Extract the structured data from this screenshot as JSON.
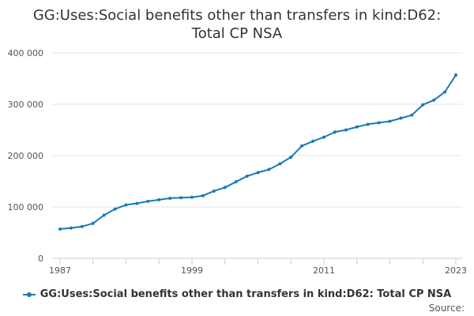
{
  "chart_data": {
    "type": "line",
    "title_lines": [
      "GG:Uses:Social benefits other than transfers in kind:D62:",
      "Total CP NSA"
    ],
    "xlabel": "",
    "ylabel": "",
    "x_tick_labels": [
      "1987",
      "1999",
      "2011",
      "2023"
    ],
    "x_ticks": [
      1987,
      1999,
      2011,
      2023
    ],
    "y_tick_labels": [
      "0",
      "100 000",
      "200 000",
      "300 000",
      "400 000"
    ],
    "y_ticks": [
      0,
      100000,
      200000,
      300000,
      400000
    ],
    "xlim": [
      1987,
      2023
    ],
    "ylim": [
      0,
      400000
    ],
    "grid": true,
    "legend_position": "bottom",
    "series": [
      {
        "name": "GG:Uses:Social benefits other than transfers in kind:D62: Total CP NSA",
        "color": "#1a7ab5",
        "x": [
          1987,
          1988,
          1989,
          1990,
          1991,
          1992,
          1993,
          1994,
          1995,
          1996,
          1997,
          1998,
          1999,
          2000,
          2001,
          2002,
          2003,
          2004,
          2005,
          2006,
          2007,
          2008,
          2009,
          2010,
          2011,
          2012,
          2013,
          2014,
          2015,
          2016,
          2017,
          2018,
          2019,
          2020,
          2021,
          2022,
          2023
        ],
        "values": [
          57000,
          59000,
          62000,
          68000,
          84000,
          96000,
          104000,
          107000,
          111000,
          114000,
          117000,
          118000,
          119000,
          122000,
          131000,
          138000,
          149000,
          160000,
          167000,
          173000,
          184000,
          197000,
          219000,
          228000,
          236000,
          246000,
          250000,
          256000,
          261000,
          264000,
          267000,
          273000,
          279000,
          299000,
          308000,
          324000,
          357000
        ]
      }
    ]
  },
  "legend": {
    "label": "GG:Uses:Social benefits other than transfers in kind:D62: Total CP NSA"
  },
  "source_label": "Source:"
}
